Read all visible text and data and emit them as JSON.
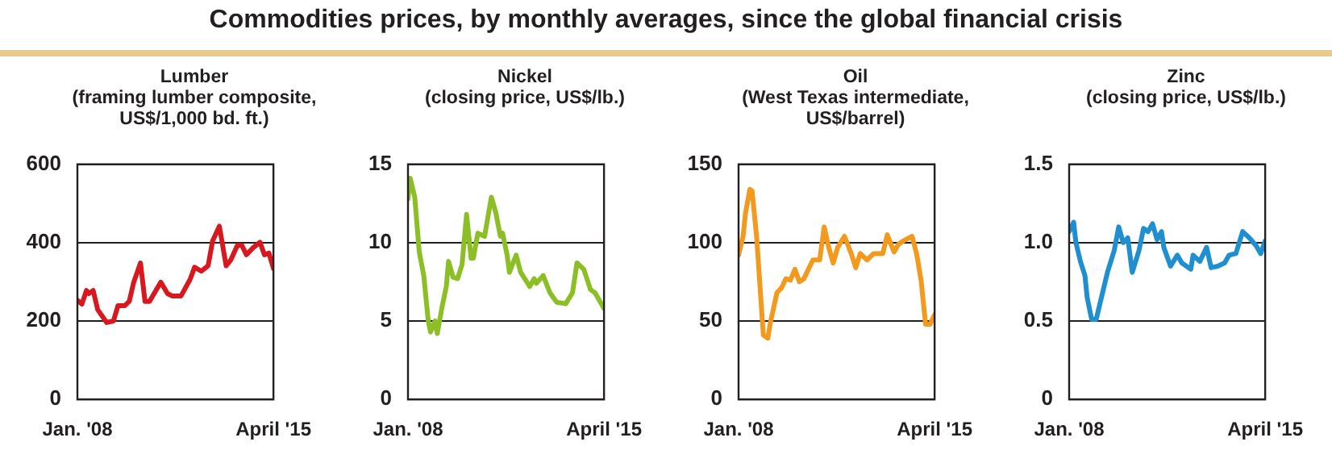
{
  "chart_data": [
    {
      "type": "other",
      "title": "Commodities prices, by monthly averages, since the global financial crisis"
    },
    {
      "type": "line",
      "title": "Lumber",
      "subtitle": "(framing lumber composite, US$/1,000 bd. ft.)",
      "color": "#d7191f",
      "x": [
        "2008-01",
        "2008-03",
        "2008-05",
        "2008-06",
        "2008-08",
        "2008-10",
        "2009-02",
        "2009-05",
        "2009-07",
        "2009-10",
        "2009-12",
        "2010-02",
        "2010-05",
        "2010-07",
        "2010-09",
        "2011-02",
        "2011-05",
        "2011-07",
        "2011-11",
        "2012-03",
        "2012-05",
        "2012-08",
        "2012-11",
        "2013-01",
        "2013-04",
        "2013-07",
        "2013-09",
        "2013-12",
        "2014-02",
        "2014-04",
        "2014-07",
        "2014-10",
        "2014-12",
        "2015-02",
        "2015-04"
      ],
      "values": [
        253,
        243,
        278,
        270,
        278,
        229,
        196,
        200,
        239,
        239,
        250,
        299,
        348,
        250,
        250,
        299,
        270,
        264,
        264,
        306,
        337,
        327,
        341,
        404,
        442,
        341,
        355,
        393,
        393,
        369,
        387,
        401,
        369,
        373,
        334
      ],
      "xlim": [
        "2008-01",
        "2015-04"
      ],
      "xticks": [
        {
          "value": "2008-01",
          "label": "Jan. '08"
        },
        {
          "value": "2015-04",
          "label": "April '15"
        }
      ],
      "ylim": [
        0,
        600
      ],
      "yticks": [
        0,
        200,
        400,
        600
      ],
      "grid": "y",
      "legend": false
    },
    {
      "type": "line",
      "title": "Nickel",
      "subtitle": "(closing price, US$/lb.)",
      "color": "#8cbf26",
      "x": [
        "2008-01",
        "2008-02",
        "2008-04",
        "2008-06",
        "2008-08",
        "2008-10",
        "2008-11",
        "2009-01",
        "2009-02",
        "2009-04",
        "2009-06",
        "2009-07",
        "2009-09",
        "2009-11",
        "2010-01",
        "2010-03",
        "2010-05",
        "2010-06",
        "2010-08",
        "2010-11",
        "2011-02",
        "2011-04",
        "2011-06",
        "2011-07",
        "2011-09",
        "2011-10",
        "2012-01",
        "2012-03",
        "2012-07",
        "2012-09",
        "2012-10",
        "2013-01",
        "2013-04",
        "2013-07",
        "2013-11",
        "2014-02",
        "2014-04",
        "2014-07",
        "2014-10",
        "2014-12",
        "2015-04"
      ],
      "values": [
        12.8,
        14.1,
        12.9,
        9.4,
        7.9,
        5.0,
        4.3,
        5.0,
        4.2,
        5.8,
        7.2,
        8.8,
        7.8,
        7.7,
        8.6,
        11.8,
        9.0,
        9.0,
        10.6,
        10.4,
        12.9,
        11.9,
        10.4,
        10.6,
        9.2,
        8.1,
        9.2,
        8.1,
        7.2,
        7.7,
        7.4,
        7.9,
        6.8,
        6.2,
        6.1,
        6.8,
        8.7,
        8.3,
        7.0,
        6.8,
        5.8
      ],
      "xlim": [
        "2008-01",
        "2015-04"
      ],
      "xticks": [
        {
          "value": "2008-01",
          "label": "Jan. '08"
        },
        {
          "value": "2015-04",
          "label": "April '15"
        }
      ],
      "ylim": [
        0,
        15
      ],
      "yticks": [
        0,
        5,
        10,
        15
      ],
      "grid": "y",
      "legend": false
    },
    {
      "type": "line",
      "title": "Oil",
      "subtitle": "(West Texas intermediate, US$/barrel)",
      "color": "#f39a1e",
      "x": [
        "2008-01",
        "2008-03",
        "2008-04",
        "2008-06",
        "2008-07",
        "2008-09",
        "2008-11",
        "2008-12",
        "2009-02",
        "2009-03",
        "2009-06",
        "2009-08",
        "2009-10",
        "2009-12",
        "2010-02",
        "2010-04",
        "2010-06",
        "2010-10",
        "2011-01",
        "2011-03",
        "2011-05",
        "2011-07",
        "2011-09",
        "2011-12",
        "2012-03",
        "2012-05",
        "2012-07",
        "2012-10",
        "2013-01",
        "2013-05",
        "2013-07",
        "2013-10",
        "2013-12",
        "2014-02",
        "2014-06",
        "2014-08",
        "2014-10",
        "2014-12",
        "2015-02",
        "2015-04"
      ],
      "values": [
        92,
        104,
        118,
        134,
        133,
        104,
        62,
        41,
        39,
        48,
        68,
        71,
        77,
        76,
        83,
        75,
        77,
        89,
        89,
        110,
        97,
        87,
        97,
        104,
        93,
        84,
        93,
        89,
        93,
        93,
        105,
        94,
        99,
        101,
        104,
        93,
        76,
        48,
        48,
        54
      ],
      "xlim": [
        "2008-01",
        "2015-04"
      ],
      "xticks": [
        {
          "value": "2008-01",
          "label": "Jan. '08"
        },
        {
          "value": "2015-04",
          "label": "April '15"
        }
      ],
      "ylim": [
        0,
        150
      ],
      "yticks": [
        0,
        50,
        100,
        150
      ],
      "grid": "y",
      "legend": false
    },
    {
      "type": "line",
      "title": "Zinc",
      "subtitle": "(closing price, US$/lb.)",
      "color": "#1f8fd0",
      "x": [
        "2008-01",
        "2008-03",
        "2008-04",
        "2008-06",
        "2008-08",
        "2008-09",
        "2008-11",
        "2009-01",
        "2009-04",
        "2009-06",
        "2009-09",
        "2009-11",
        "2010-01",
        "2010-03",
        "2010-05",
        "2010-08",
        "2010-10",
        "2010-12",
        "2011-02",
        "2011-04",
        "2011-06",
        "2011-07",
        "2011-10",
        "2012-01",
        "2012-03",
        "2012-07",
        "2012-08",
        "2012-11",
        "2013-02",
        "2013-04",
        "2013-07",
        "2013-10",
        "2013-12",
        "2014-03",
        "2014-06",
        "2014-09",
        "2014-12",
        "2015-02",
        "2015-04"
      ],
      "values": [
        1.07,
        1.13,
        1.0,
        0.88,
        0.79,
        0.65,
        0.51,
        0.51,
        0.69,
        0.81,
        0.95,
        1.1,
        1.0,
        1.03,
        0.81,
        0.95,
        1.09,
        1.07,
        1.12,
        1.02,
        1.07,
        0.97,
        0.85,
        0.92,
        0.87,
        0.83,
        0.92,
        0.88,
        0.97,
        0.84,
        0.85,
        0.87,
        0.92,
        0.93,
        1.07,
        1.03,
        0.98,
        0.93,
        1.01
      ],
      "xlim": [
        "2008-01",
        "2015-04"
      ],
      "xticks": [
        {
          "value": "2008-01",
          "label": "Jan. '08"
        },
        {
          "value": "2015-04",
          "label": "April '15"
        }
      ],
      "ylim": [
        0,
        1.5
      ],
      "yticks": [
        0,
        {
          "value": 0.5,
          "label": "0.5"
        },
        {
          "value": 1,
          "label": "1.0"
        },
        {
          "value": 1.5,
          "label": "1.5"
        }
      ],
      "grid": "y",
      "legend": false
    }
  ]
}
